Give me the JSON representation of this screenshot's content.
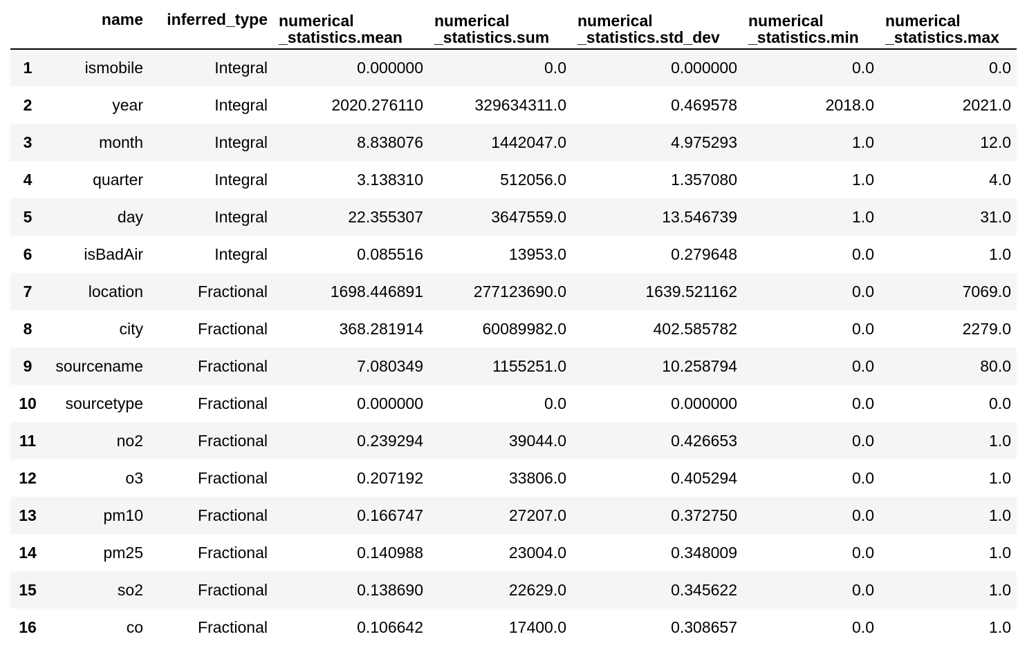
{
  "table": {
    "headers": {
      "index": "",
      "name": "name",
      "inferred_type": "inferred_type",
      "mean": [
        "numerical",
        "_statistics.mean"
      ],
      "sum": [
        "numerical",
        "_statistics.sum"
      ],
      "std_dev": [
        "numerical",
        "_statistics.std_dev"
      ],
      "min": [
        "numerical",
        "_statistics.min"
      ],
      "max": [
        "numerical",
        "_statistics.max"
      ]
    },
    "rows": [
      {
        "index": "1",
        "name": "ismobile",
        "inferred_type": "Integral",
        "mean": "0.000000",
        "sum": "0.0",
        "std_dev": "0.000000",
        "min": "0.0",
        "max": "0.0"
      },
      {
        "index": "2",
        "name": "year",
        "inferred_type": "Integral",
        "mean": "2020.276110",
        "sum": "329634311.0",
        "std_dev": "0.469578",
        "min": "2018.0",
        "max": "2021.0"
      },
      {
        "index": "3",
        "name": "month",
        "inferred_type": "Integral",
        "mean": "8.838076",
        "sum": "1442047.0",
        "std_dev": "4.975293",
        "min": "1.0",
        "max": "12.0"
      },
      {
        "index": "4",
        "name": "quarter",
        "inferred_type": "Integral",
        "mean": "3.138310",
        "sum": "512056.0",
        "std_dev": "1.357080",
        "min": "1.0",
        "max": "4.0"
      },
      {
        "index": "5",
        "name": "day",
        "inferred_type": "Integral",
        "mean": "22.355307",
        "sum": "3647559.0",
        "std_dev": "13.546739",
        "min": "1.0",
        "max": "31.0"
      },
      {
        "index": "6",
        "name": "isBadAir",
        "inferred_type": "Integral",
        "mean": "0.085516",
        "sum": "13953.0",
        "std_dev": "0.279648",
        "min": "0.0",
        "max": "1.0"
      },
      {
        "index": "7",
        "name": "location",
        "inferred_type": "Fractional",
        "mean": "1698.446891",
        "sum": "277123690.0",
        "std_dev": "1639.521162",
        "min": "0.0",
        "max": "7069.0"
      },
      {
        "index": "8",
        "name": "city",
        "inferred_type": "Fractional",
        "mean": "368.281914",
        "sum": "60089982.0",
        "std_dev": "402.585782",
        "min": "0.0",
        "max": "2279.0"
      },
      {
        "index": "9",
        "name": "sourcename",
        "inferred_type": "Fractional",
        "mean": "7.080349",
        "sum": "1155251.0",
        "std_dev": "10.258794",
        "min": "0.0",
        "max": "80.0"
      },
      {
        "index": "10",
        "name": "sourcetype",
        "inferred_type": "Fractional",
        "mean": "0.000000",
        "sum": "0.0",
        "std_dev": "0.000000",
        "min": "0.0",
        "max": "0.0"
      },
      {
        "index": "11",
        "name": "no2",
        "inferred_type": "Fractional",
        "mean": "0.239294",
        "sum": "39044.0",
        "std_dev": "0.426653",
        "min": "0.0",
        "max": "1.0"
      },
      {
        "index": "12",
        "name": "o3",
        "inferred_type": "Fractional",
        "mean": "0.207192",
        "sum": "33806.0",
        "std_dev": "0.405294",
        "min": "0.0",
        "max": "1.0"
      },
      {
        "index": "13",
        "name": "pm10",
        "inferred_type": "Fractional",
        "mean": "0.166747",
        "sum": "27207.0",
        "std_dev": "0.372750",
        "min": "0.0",
        "max": "1.0"
      },
      {
        "index": "14",
        "name": "pm25",
        "inferred_type": "Fractional",
        "mean": "0.140988",
        "sum": "23004.0",
        "std_dev": "0.348009",
        "min": "0.0",
        "max": "1.0"
      },
      {
        "index": "15",
        "name": "so2",
        "inferred_type": "Fractional",
        "mean": "0.138690",
        "sum": "22629.0",
        "std_dev": "0.345622",
        "min": "0.0",
        "max": "1.0"
      },
      {
        "index": "16",
        "name": "co",
        "inferred_type": "Fractional",
        "mean": "0.106642",
        "sum": "17400.0",
        "std_dev": "0.308657",
        "min": "0.0",
        "max": "1.0"
      }
    ]
  },
  "colors": {
    "row_stripe": "#f5f5f5",
    "row_plain": "#ffffff",
    "header_rule": "#000000"
  }
}
